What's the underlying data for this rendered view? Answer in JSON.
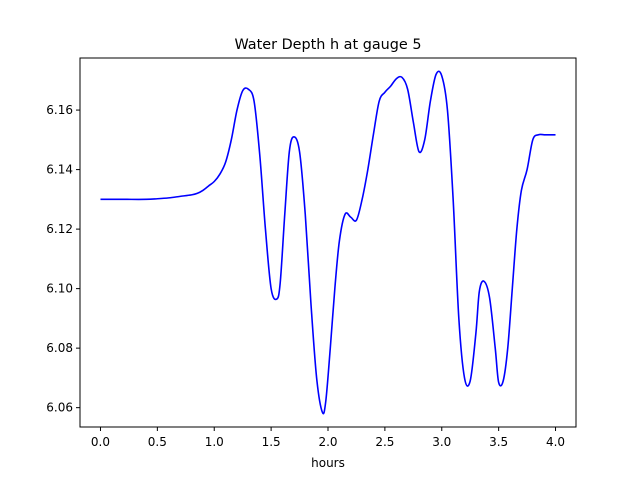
{
  "chart_data": {
    "type": "line",
    "title": "Water Depth h at gauge 5",
    "xlabel": "hours",
    "ylabel": "",
    "xlim": [
      -0.18,
      4.18
    ],
    "ylim": [
      6.0535,
      6.1775
    ],
    "xticks": [
      0.0,
      0.5,
      1.0,
      1.5,
      2.0,
      2.5,
      3.0,
      3.5,
      4.0
    ],
    "xtick_labels": [
      "0.0",
      "0.5",
      "1.0",
      "1.5",
      "2.0",
      "2.5",
      "3.0",
      "3.5",
      "4.0"
    ],
    "yticks": [
      6.06,
      6.08,
      6.1,
      6.12,
      6.14,
      6.16
    ],
    "ytick_labels": [
      "6.06",
      "6.08",
      "6.10",
      "6.12",
      "6.14",
      "6.16"
    ],
    "grid": false,
    "series": [
      {
        "color": "#0000ff",
        "x": [
          0.0,
          0.2,
          0.4,
          0.5,
          0.6,
          0.7,
          0.8,
          0.85,
          0.9,
          0.95,
          1.0,
          1.05,
          1.1,
          1.15,
          1.2,
          1.25,
          1.3,
          1.35,
          1.4,
          1.45,
          1.5,
          1.55,
          1.58,
          1.62,
          1.66,
          1.7,
          1.75,
          1.8,
          1.85,
          1.9,
          1.95,
          1.98,
          2.02,
          2.06,
          2.1,
          2.15,
          2.2,
          2.25,
          2.3,
          2.35,
          2.4,
          2.45,
          2.5,
          2.55,
          2.6,
          2.65,
          2.7,
          2.75,
          2.8,
          2.85,
          2.9,
          2.95,
          3.0,
          3.05,
          3.1,
          3.15,
          3.2,
          3.25,
          3.3,
          3.33,
          3.37,
          3.42,
          3.47,
          3.5,
          3.54,
          3.58,
          3.62,
          3.66,
          3.7,
          3.75,
          3.8,
          3.85,
          3.9,
          3.95,
          4.0
        ],
        "y": [
          6.13,
          6.13,
          6.13,
          6.1302,
          6.1305,
          6.131,
          6.1315,
          6.132,
          6.133,
          6.1345,
          6.136,
          6.1385,
          6.1425,
          6.15,
          6.16,
          6.1665,
          6.167,
          6.163,
          6.145,
          6.12,
          6.1,
          6.0965,
          6.102,
          6.125,
          6.146,
          6.151,
          6.146,
          6.125,
          6.095,
          6.07,
          6.0585,
          6.062,
          6.08,
          6.1,
          6.116,
          6.125,
          6.124,
          6.123,
          6.13,
          6.14,
          6.152,
          6.163,
          6.166,
          6.168,
          6.1705,
          6.171,
          6.167,
          6.156,
          6.146,
          6.15,
          6.163,
          6.172,
          6.1715,
          6.16,
          6.13,
          6.09,
          6.07,
          6.069,
          6.085,
          6.099,
          6.1025,
          6.097,
          6.08,
          6.0685,
          6.069,
          6.08,
          6.1,
          6.12,
          6.133,
          6.14,
          6.15,
          6.1517,
          6.1517,
          6.1517,
          6.1517
        ]
      }
    ]
  }
}
